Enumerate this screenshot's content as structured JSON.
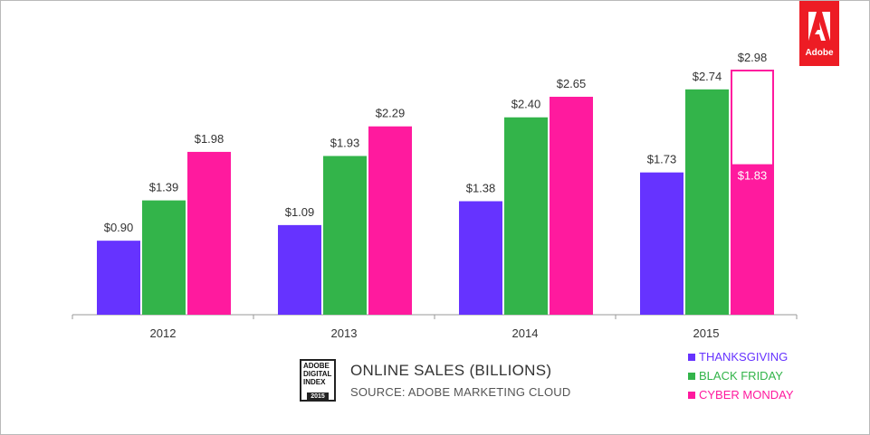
{
  "chart_data": {
    "type": "bar",
    "title": "ONLINE SALES (BILLIONS)",
    "subtitle": "SOURCE: ADOBE MARKETING CLOUD",
    "categories": [
      "2012",
      "2013",
      "2014",
      "2015"
    ],
    "series": [
      {
        "name": "THANKSGIVING",
        "values": [
          0.9,
          1.09,
          1.38,
          1.73
        ],
        "labels": [
          "$0.90",
          "$1.09",
          "$1.38",
          "$1.73"
        ],
        "color": "#6633ff"
      },
      {
        "name": "BLACK FRIDAY",
        "values": [
          1.39,
          1.93,
          2.4,
          2.74
        ],
        "labels": [
          "$1.39",
          "$1.93",
          "$2.40",
          "$2.74"
        ],
        "color": "#33b44a"
      },
      {
        "name": "CYBER MONDAY",
        "values": [
          1.98,
          2.29,
          2.65,
          1.83
        ],
        "labels": [
          "$1.98",
          "$2.29",
          "$2.65",
          "$1.83"
        ],
        "color": "#ff1a9e"
      }
    ],
    "forecast": {
      "series": "CYBER MONDAY",
      "category": "2015",
      "value": 2.98,
      "label": "$2.98"
    },
    "ylim": [
      0,
      3.5
    ],
    "grid": false,
    "legend_position": "bottom-right"
  },
  "badge": {
    "line1": "ADOBE",
    "line2": "DIGITAL",
    "line3": "INDEX",
    "year": "2015"
  },
  "brand": {
    "name": "Adobe",
    "color": "#ed1c24"
  }
}
